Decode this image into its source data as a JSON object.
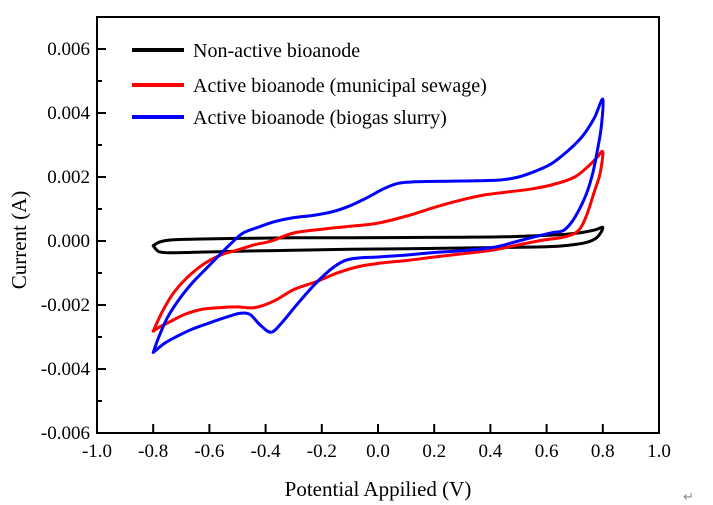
{
  "page": {
    "return_mark": "↵"
  },
  "chart_data": {
    "type": "line",
    "subtype": "cyclic-voltammogram",
    "title": "",
    "xlabel": "Potential Appilied (V)",
    "ylabel": "Current (A)",
    "xlim": [
      -1.0,
      1.0
    ],
    "ylim": [
      -0.006,
      0.007
    ],
    "grid": false,
    "x_ticks": {
      "values": [
        -1.0,
        -0.8,
        -0.6,
        -0.4,
        -0.2,
        0.0,
        0.2,
        0.4,
        0.6,
        0.8,
        1.0
      ],
      "labels": [
        "-1.0",
        "-0.8",
        "-0.6",
        "-0.4",
        "-0.2",
        "0.0",
        "0.2",
        "0.4",
        "0.6",
        "0.8",
        "1.0"
      ]
    },
    "y_ticks": {
      "values": [
        0.006,
        0.004,
        0.002,
        0.0,
        -0.002,
        -0.004,
        -0.006
      ],
      "labels": [
        "0.006",
        "0.004",
        "0.002",
        "0.000",
        "-0.002",
        "-0.004",
        "-0.006"
      ],
      "minor_values": [
        0.005,
        0.003,
        0.001,
        -0.001,
        -0.003,
        -0.005
      ]
    },
    "legend": {
      "position": "top-left"
    },
    "series": [
      {
        "name": "Non-active bioanode",
        "color": "#000000",
        "closed": true,
        "points": [
          [
            -0.8,
            -0.00015
          ],
          [
            -0.78,
            -4e-05
          ],
          [
            -0.74,
            3e-05
          ],
          [
            -0.65,
            6e-05
          ],
          [
            -0.5,
            8e-05
          ],
          [
            -0.3,
            0.0001
          ],
          [
            -0.1,
            0.0001
          ],
          [
            0.1,
            0.00011
          ],
          [
            0.3,
            0.00012
          ],
          [
            0.45,
            0.00013
          ],
          [
            0.55,
            0.00016
          ],
          [
            0.65,
            0.0002
          ],
          [
            0.72,
            0.00026
          ],
          [
            0.77,
            0.00034
          ],
          [
            0.8,
            0.00042
          ],
          [
            0.78,
            0.00012
          ],
          [
            0.74,
            -5e-05
          ],
          [
            0.68,
            -0.00013
          ],
          [
            0.6,
            -0.00018
          ],
          [
            0.45,
            -0.0002
          ],
          [
            0.3,
            -0.00022
          ],
          [
            0.1,
            -0.00024
          ],
          [
            -0.1,
            -0.00026
          ],
          [
            -0.3,
            -0.00029
          ],
          [
            -0.5,
            -0.00032
          ],
          [
            -0.65,
            -0.00035
          ],
          [
            -0.74,
            -0.00037
          ],
          [
            -0.78,
            -0.00033
          ],
          [
            -0.8,
            -0.00015
          ]
        ]
      },
      {
        "name": "Active bioanode (municipal sewage)",
        "color": "#FF0000",
        "closed": true,
        "points": [
          [
            -0.8,
            -0.00282
          ],
          [
            -0.77,
            -0.00225
          ],
          [
            -0.73,
            -0.00165
          ],
          [
            -0.68,
            -0.00115
          ],
          [
            -0.62,
            -0.00072
          ],
          [
            -0.56,
            -0.00044
          ],
          [
            -0.5,
            -0.00028
          ],
          [
            -0.44,
            -0.00012
          ],
          [
            -0.38,
            0.0
          ],
          [
            -0.3,
            0.00025
          ],
          [
            -0.2,
            0.00037
          ],
          [
            -0.1,
            0.00046
          ],
          [
            0.0,
            0.00056
          ],
          [
            0.11,
            0.0008
          ],
          [
            0.2,
            0.00105
          ],
          [
            0.29,
            0.00127
          ],
          [
            0.38,
            0.00144
          ],
          [
            0.46,
            0.00153
          ],
          [
            0.55,
            0.00163
          ],
          [
            0.63,
            0.00178
          ],
          [
            0.7,
            0.002
          ],
          [
            0.75,
            0.00235
          ],
          [
            0.78,
            0.00262
          ],
          [
            0.8,
            0.00278
          ],
          [
            0.79,
            0.0021
          ],
          [
            0.77,
            0.00155
          ],
          [
            0.74,
            0.00075
          ],
          [
            0.71,
            0.0003
          ],
          [
            0.66,
            0.00012
          ],
          [
            0.59,
            3e-05
          ],
          [
            0.5,
            -0.00012
          ],
          [
            0.41,
            -0.00028
          ],
          [
            0.3,
            -0.0004
          ],
          [
            0.2,
            -0.0005
          ],
          [
            0.11,
            -0.0006
          ],
          [
            0.0,
            -0.0007
          ],
          [
            -0.07,
            -0.0008
          ],
          [
            -0.14,
            -0.00098
          ],
          [
            -0.22,
            -0.00127
          ],
          [
            -0.3,
            -0.00152
          ],
          [
            -0.36,
            -0.00183
          ],
          [
            -0.41,
            -0.00202
          ],
          [
            -0.45,
            -0.00209
          ],
          [
            -0.5,
            -0.00206
          ],
          [
            -0.56,
            -0.00208
          ],
          [
            -0.63,
            -0.00214
          ],
          [
            -0.69,
            -0.0023
          ],
          [
            -0.74,
            -0.00252
          ],
          [
            -0.78,
            -0.0027
          ],
          [
            -0.8,
            -0.00282
          ]
        ]
      },
      {
        "name": "Active bioanode (biogas slurry)",
        "color": "#0000FF",
        "closed": true,
        "points": [
          [
            -0.8,
            -0.00348
          ],
          [
            -0.78,
            -0.003
          ],
          [
            -0.75,
            -0.0024
          ],
          [
            -0.71,
            -0.00185
          ],
          [
            -0.66,
            -0.0013
          ],
          [
            -0.61,
            -0.00085
          ],
          [
            -0.56,
            -0.0004
          ],
          [
            -0.52,
            -5e-05
          ],
          [
            -0.48,
            0.00025
          ],
          [
            -0.43,
            0.00042
          ],
          [
            -0.37,
            0.0006
          ],
          [
            -0.3,
            0.00073
          ],
          [
            -0.23,
            0.0008
          ],
          [
            -0.16,
            0.00092
          ],
          [
            -0.1,
            0.0011
          ],
          [
            -0.04,
            0.00135
          ],
          [
            0.02,
            0.00163
          ],
          [
            0.07,
            0.0018
          ],
          [
            0.13,
            0.00185
          ],
          [
            0.25,
            0.00187
          ],
          [
            0.35,
            0.00188
          ],
          [
            0.44,
            0.00191
          ],
          [
            0.5,
            0.002
          ],
          [
            0.56,
            0.00218
          ],
          [
            0.62,
            0.00243
          ],
          [
            0.68,
            0.00285
          ],
          [
            0.73,
            0.0033
          ],
          [
            0.77,
            0.00385
          ],
          [
            0.8,
            0.00443
          ],
          [
            0.795,
            0.0036
          ],
          [
            0.78,
            0.0028
          ],
          [
            0.765,
            0.00215
          ],
          [
            0.745,
            0.00155
          ],
          [
            0.72,
            0.00105
          ],
          [
            0.69,
            0.0006
          ],
          [
            0.66,
            0.00033
          ],
          [
            0.62,
            0.00026
          ],
          [
            0.57,
            0.00016
          ],
          [
            0.5,
            0.0
          ],
          [
            0.41,
            -0.0002
          ],
          [
            0.3,
            -0.0003
          ],
          [
            0.2,
            -0.00036
          ],
          [
            0.1,
            -0.00044
          ],
          [
            0.0,
            -0.0005
          ],
          [
            -0.07,
            -0.00053
          ],
          [
            -0.12,
            -0.00062
          ],
          [
            -0.17,
            -0.0009
          ],
          [
            -0.23,
            -0.0014
          ],
          [
            -0.29,
            -0.002
          ],
          [
            -0.34,
            -0.00253
          ],
          [
            -0.38,
            -0.00285
          ],
          [
            -0.42,
            -0.00262
          ],
          [
            -0.455,
            -0.0023
          ],
          [
            -0.49,
            -0.00226
          ],
          [
            -0.54,
            -0.00238
          ],
          [
            -0.6,
            -0.00256
          ],
          [
            -0.66,
            -0.00275
          ],
          [
            -0.72,
            -0.003
          ],
          [
            -0.76,
            -0.0032
          ],
          [
            -0.8,
            -0.00348
          ]
        ]
      }
    ]
  }
}
